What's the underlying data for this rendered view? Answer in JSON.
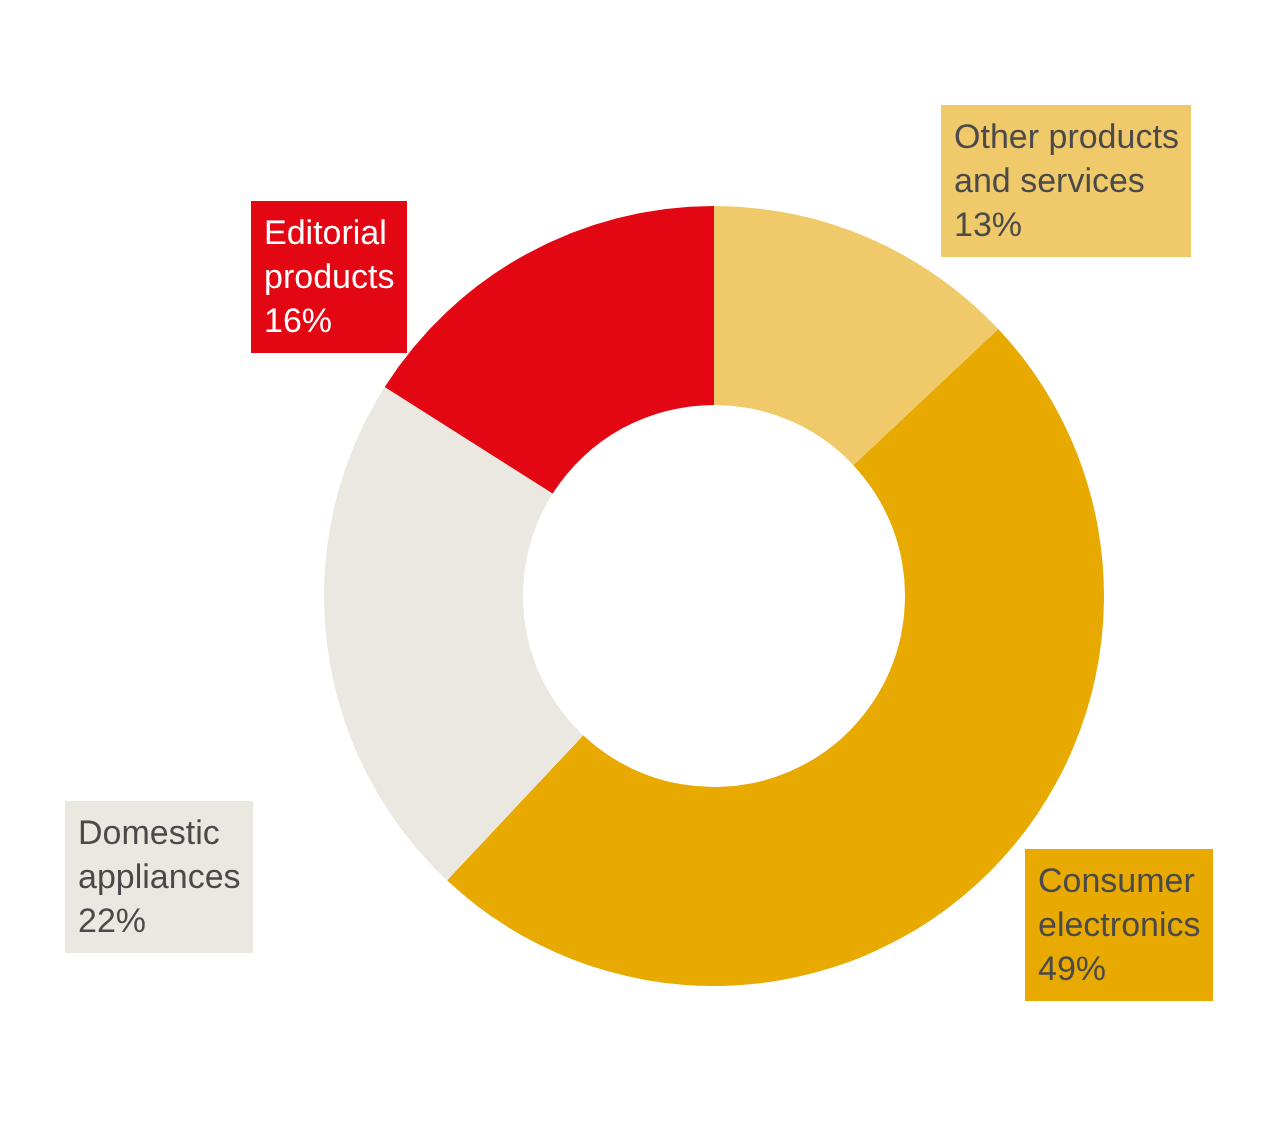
{
  "chart_data": {
    "type": "donut",
    "categories": [
      "Other products and services",
      "Consumer electronics",
      "Domestic appliances",
      "Editorial products"
    ],
    "values": [
      13,
      49,
      22,
      16
    ],
    "colors": [
      "#f0c96a",
      "#e8a900",
      "#ebe7e1",
      "#e30613"
    ],
    "value_labels": [
      "13%",
      "49%",
      "22%",
      "16%"
    ],
    "legend": false
  }
}
